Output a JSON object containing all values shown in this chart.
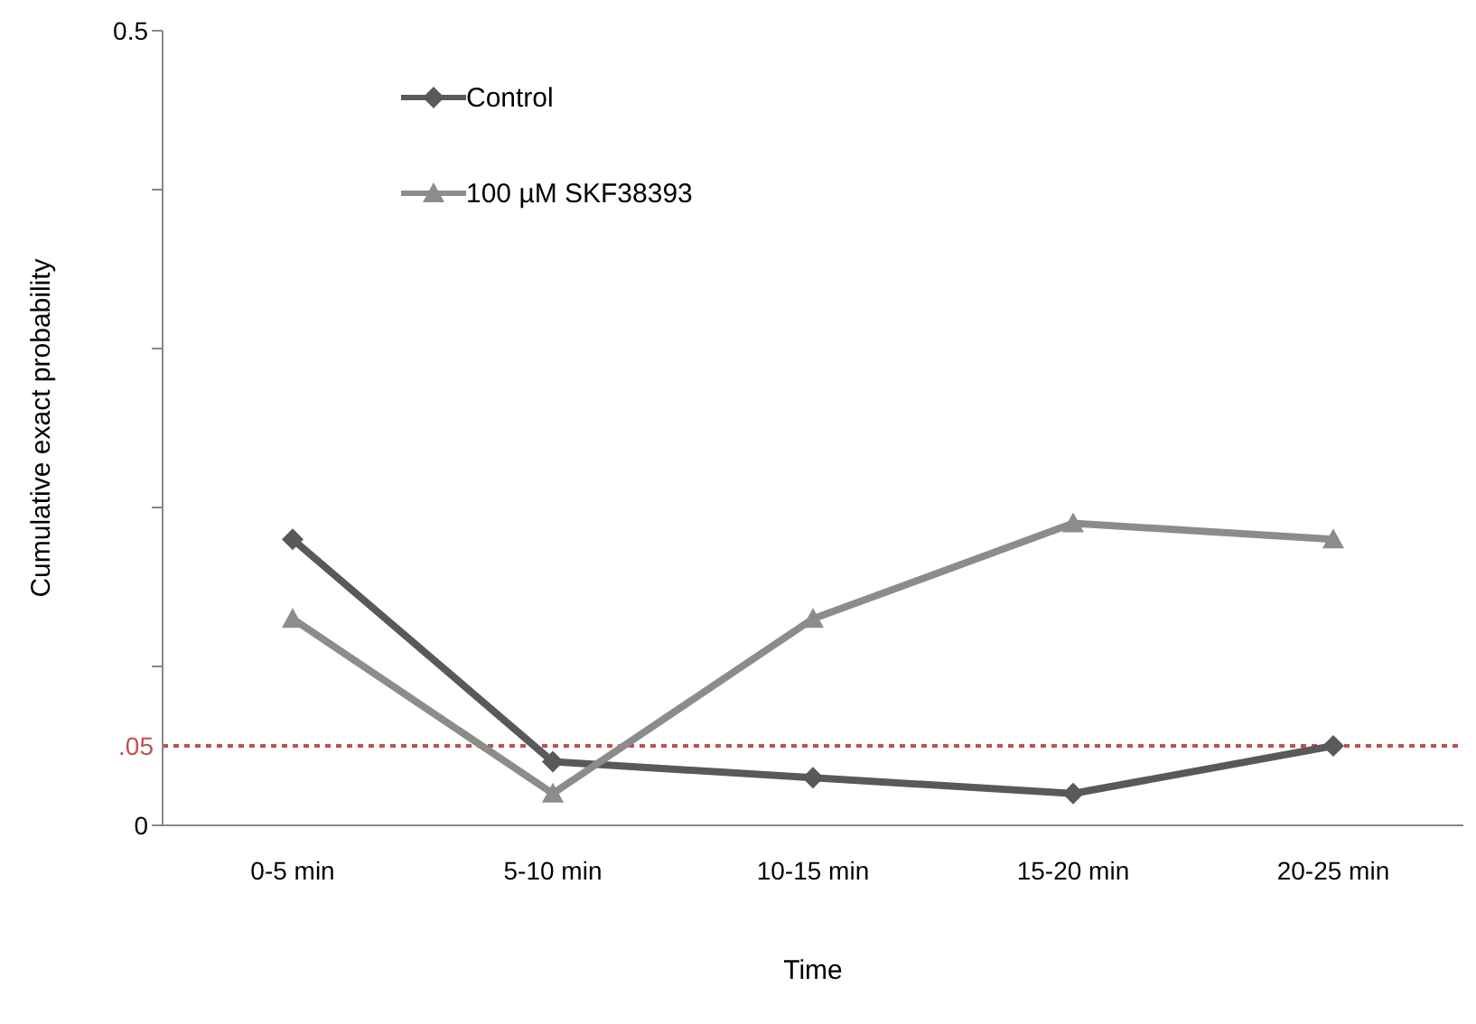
{
  "chart_data": {
    "type": "line",
    "xlabel": "Time",
    "ylabel": "Cumulative exact probability",
    "categories": [
      "0-5 min",
      "5-10 min",
      "10-15 min",
      "15-20 min",
      "20-25 min"
    ],
    "series": [
      {
        "name": "Control",
        "color": "#595959",
        "marker": "diamond",
        "values": [
          0.18,
          0.04,
          0.03,
          0.02,
          0.05
        ]
      },
      {
        "name": "100 µM SKF38393",
        "color": "#8c8c8c",
        "marker": "triangle",
        "values": [
          0.13,
          0.02,
          0.13,
          0.19,
          0.18
        ]
      }
    ],
    "ylim": [
      0,
      0.5
    ],
    "yticks": [
      0,
      {
        "value": 0.1,
        "label": null
      },
      {
        "value": 0.2,
        "label": null
      },
      {
        "value": 0.3,
        "label": null
      },
      {
        "value": 0.4,
        "label": null
      },
      0.5
    ],
    "ref_lines": [
      {
        "axis": "y",
        "value": 0.05,
        "label": ".05",
        "color": "#c0504d",
        "line_style": "dotted"
      }
    ],
    "grid": false,
    "legend": "top left",
    "line_style": "solid"
  }
}
